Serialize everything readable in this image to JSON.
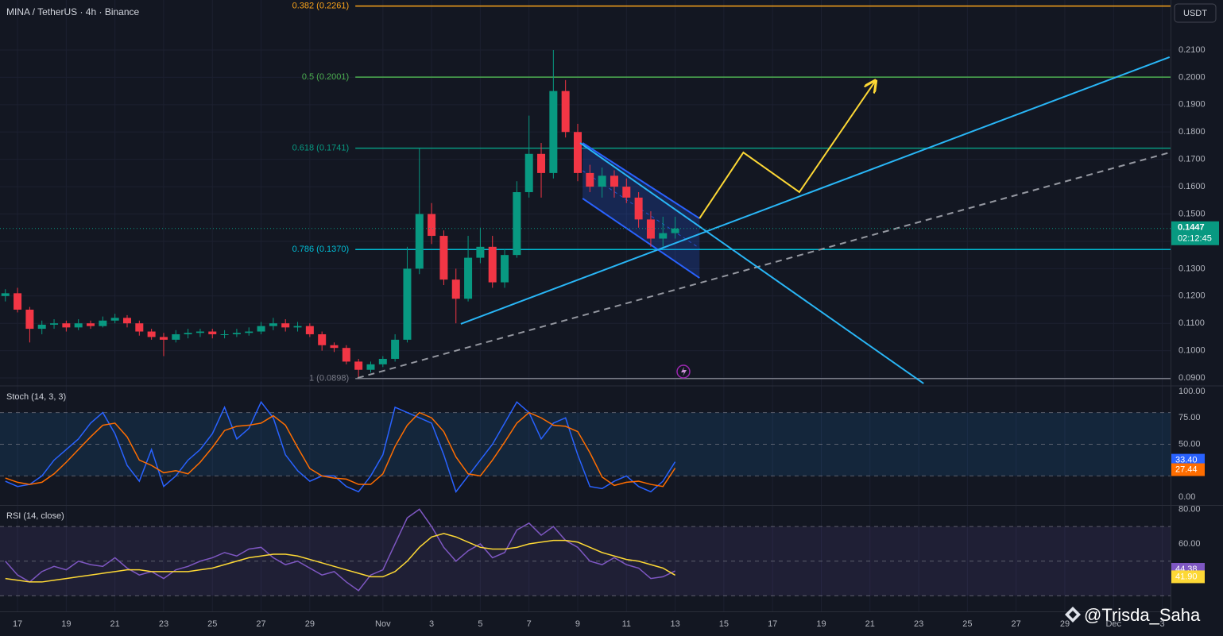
{
  "header": {
    "symbol": "MINA / TetherUS · 4h · Binance",
    "currency": "USDT",
    "countdown": "02:12:45",
    "watermark": "@Trisda_Saha"
  },
  "chart_data": [
    {
      "type": "candlestick",
      "up_color": "#089981",
      "down_color": "#f23645",
      "xlim": [
        -0.72,
        47.34
      ],
      "ylim": [
        0.0874,
        0.2283
      ],
      "xticks": [
        {
          "value": 0,
          "label": "17"
        },
        {
          "value": 2,
          "label": "19"
        },
        {
          "value": 4,
          "label": "21"
        },
        {
          "value": 6,
          "label": "23"
        },
        {
          "value": 8,
          "label": "25"
        },
        {
          "value": 10,
          "label": "27"
        },
        {
          "value": 12,
          "label": "29"
        },
        {
          "value": 15,
          "label": "Nov"
        },
        {
          "value": 17,
          "label": "3"
        },
        {
          "value": 19,
          "label": "5"
        },
        {
          "value": 21,
          "label": "7"
        },
        {
          "value": 23,
          "label": "9"
        },
        {
          "value": 25,
          "label": "11"
        },
        {
          "value": 27,
          "label": "13"
        },
        {
          "value": 29,
          "label": "15"
        },
        {
          "value": 31,
          "label": "17"
        },
        {
          "value": 33,
          "label": "19"
        },
        {
          "value": 35,
          "label": "21"
        },
        {
          "value": 37,
          "label": "23"
        },
        {
          "value": 39,
          "label": "25"
        },
        {
          "value": 41,
          "label": "27"
        },
        {
          "value": 43,
          "label": "29"
        },
        {
          "value": 45,
          "label": "Dec"
        },
        {
          "value": 47,
          "label": "3"
        }
      ],
      "yticks": [
        {
          "value": 0.09,
          "label": "0.0900"
        },
        {
          "value": 0.1,
          "label": "0.1000"
        },
        {
          "value": 0.11,
          "label": "0.1100"
        },
        {
          "value": 0.12,
          "label": "0.1200"
        },
        {
          "value": 0.13,
          "label": "0.1300"
        },
        {
          "value": 0.14,
          "label": "0.1400"
        },
        {
          "value": 0.15,
          "label": "0.1500"
        },
        {
          "value": 0.16,
          "label": "0.1600"
        },
        {
          "value": 0.17,
          "label": "0.1700"
        },
        {
          "value": 0.18,
          "label": "0.1800"
        },
        {
          "value": 0.19,
          "label": "0.1900"
        },
        {
          "value": 0.2,
          "label": "0.2000"
        },
        {
          "value": 0.21,
          "label": "0.2100"
        }
      ],
      "grid": true,
      "x": [
        -0.5,
        0,
        0.5,
        1,
        1.5,
        2,
        2.5,
        3,
        3.5,
        4,
        4.5,
        5,
        5.5,
        6,
        6.5,
        7,
        7.5,
        8,
        8.5,
        9,
        9.5,
        10,
        10.5,
        11,
        11.5,
        12,
        12.5,
        13,
        13.5,
        14,
        14.5,
        15,
        15.5,
        16,
        16.5,
        17,
        17.5,
        18,
        18.5,
        19,
        19.5,
        20,
        20.5,
        21,
        21.5,
        22,
        22.5,
        23,
        23.5,
        24,
        24.5,
        25,
        25.5,
        26,
        26.5,
        27
      ],
      "open": [
        0.12,
        0.121,
        0.115,
        0.108,
        0.1095,
        0.11,
        0.1085,
        0.11,
        0.109,
        0.111,
        0.112,
        0.11,
        0.107,
        0.105,
        0.104,
        0.106,
        0.1065,
        0.107,
        0.106,
        0.106,
        0.1065,
        0.107,
        0.109,
        0.11,
        0.1085,
        0.109,
        0.106,
        0.102,
        0.101,
        0.096,
        0.093,
        0.095,
        0.097,
        0.104,
        0.13,
        0.15,
        0.142,
        0.126,
        0.119,
        0.134,
        0.138,
        0.125,
        0.135,
        0.158,
        0.172,
        0.165,
        0.195,
        0.18,
        0.165,
        0.16,
        0.164,
        0.16,
        0.156,
        0.148,
        0.141,
        0.143
      ],
      "high": [
        0.1225,
        0.123,
        0.116,
        0.111,
        0.1115,
        0.111,
        0.1115,
        0.111,
        0.1125,
        0.1135,
        0.113,
        0.111,
        0.108,
        0.1065,
        0.1075,
        0.108,
        0.108,
        0.108,
        0.1075,
        0.108,
        0.1085,
        0.1105,
        0.112,
        0.1115,
        0.1105,
        0.11,
        0.107,
        0.103,
        0.102,
        0.097,
        0.096,
        0.098,
        0.106,
        0.138,
        0.174,
        0.154,
        0.144,
        0.13,
        0.142,
        0.145,
        0.142,
        0.137,
        0.162,
        0.186,
        0.176,
        0.21,
        0.199,
        0.183,
        0.168,
        0.167,
        0.166,
        0.163,
        0.158,
        0.151,
        0.149,
        0.149
      ],
      "low": [
        0.118,
        0.114,
        0.103,
        0.106,
        0.108,
        0.107,
        0.1075,
        0.108,
        0.1085,
        0.11,
        0.1085,
        0.1055,
        0.104,
        0.098,
        0.103,
        0.1045,
        0.105,
        0.1045,
        0.1045,
        0.105,
        0.1055,
        0.106,
        0.1075,
        0.107,
        0.107,
        0.105,
        0.1,
        0.0995,
        0.095,
        0.0898,
        0.092,
        0.094,
        0.096,
        0.103,
        0.128,
        0.139,
        0.124,
        0.11,
        0.118,
        0.132,
        0.123,
        0.123,
        0.134,
        0.156,
        0.156,
        0.163,
        0.178,
        0.162,
        0.158,
        0.156,
        0.156,
        0.154,
        0.145,
        0.138,
        0.138,
        0.141
      ],
      "close": [
        0.121,
        0.115,
        0.108,
        0.1095,
        0.11,
        0.1085,
        0.11,
        0.109,
        0.111,
        0.112,
        0.11,
        0.107,
        0.105,
        0.104,
        0.106,
        0.1065,
        0.107,
        0.106,
        0.106,
        0.1065,
        0.107,
        0.109,
        0.11,
        0.1085,
        0.109,
        0.106,
        0.102,
        0.101,
        0.096,
        0.093,
        0.095,
        0.097,
        0.104,
        0.13,
        0.15,
        0.142,
        0.126,
        0.119,
        0.134,
        0.138,
        0.125,
        0.135,
        0.158,
        0.172,
        0.165,
        0.195,
        0.18,
        0.165,
        0.16,
        0.164,
        0.16,
        0.156,
        0.148,
        0.141,
        0.143,
        0.1447
      ],
      "fib_levels": [
        {
          "label": "0.382 (0.2261)",
          "value": 0.2261,
          "color": "#f7a21b"
        },
        {
          "label": "0.5 (0.2001)",
          "value": 0.2001,
          "color": "#4caf50"
        },
        {
          "label": "0.618 (0.1741)",
          "value": 0.1741,
          "color": "#089981"
        },
        {
          "label": "0.786 (0.1370)",
          "value": 0.137,
          "color": "#00bcd4"
        },
        {
          "label": "1 (0.0898)",
          "value": 0.0898,
          "color": "#787b86"
        }
      ],
      "drawings": [
        {
          "style": "solid",
          "color": "#29b6f6",
          "points": [
            [
              18.2,
              0.1098
            ],
            [
              47.3,
              0.2074
            ]
          ]
        },
        {
          "style": "dashed",
          "color": "#9598a1",
          "points": [
            [
              13.96,
              0.09
            ],
            [
              47.3,
              0.1725
            ]
          ]
        },
        {
          "style": "solid",
          "color": "#29b6f6",
          "points": [
            [
              23.1,
              0.176
            ],
            [
              37.2,
              0.088
            ]
          ]
        },
        {
          "style": "arrow",
          "color": "#fdd835",
          "points": [
            [
              28.0,
              0.1484
            ],
            [
              29.8,
              0.1725
            ],
            [
              32.1,
              0.158
            ],
            [
              35.2,
              0.1984
            ]
          ]
        }
      ],
      "channel": {
        "color": "#2962ff",
        "upper": [
          [
            23.2,
            0.176
          ],
          [
            28.0,
            0.1484
          ]
        ],
        "lower": [
          [
            23.2,
            0.1557
          ],
          [
            28.0,
            0.1266
          ]
        ]
      }
    },
    {
      "type": "line",
      "title": "Stoch (14, 3, 3)",
      "ylim": [
        -7.5,
        104.5
      ],
      "yticks": [
        {
          "value": 0,
          "label": "0.00"
        },
        {
          "value": 25,
          "label": "25.00"
        },
        {
          "value": 50,
          "label": "50.00"
        },
        {
          "value": 75,
          "label": "75.00"
        },
        {
          "value": 100,
          "label": "100.00"
        }
      ],
      "band": [
        20,
        80
      ],
      "band_color": "#2196f3",
      "guides": [
        80,
        50,
        20
      ],
      "series": [
        {
          "color": "#2962ff",
          "last_value_label": "33.40",
          "values": [
            15,
            10,
            12,
            20,
            35,
            45,
            55,
            70,
            80,
            60,
            30,
            15,
            45,
            10,
            20,
            35,
            45,
            60,
            85,
            55,
            65,
            90,
            75,
            40,
            25,
            15,
            20,
            20,
            10,
            5,
            20,
            40,
            85,
            80,
            75,
            70,
            40,
            5,
            20,
            35,
            50,
            70,
            90,
            80,
            55,
            70,
            75,
            40,
            10,
            8,
            15,
            20,
            10,
            5,
            15,
            33.4
          ]
        },
        {
          "color": "#ff6d00",
          "last_value_label": "27.44",
          "values": [
            18,
            14,
            12,
            14,
            22,
            33,
            45,
            57,
            68,
            70,
            57,
            35,
            30,
            23,
            25,
            22,
            33,
            47,
            63,
            67,
            68,
            70,
            77,
            68,
            47,
            27,
            20,
            18,
            17,
            12,
            12,
            22,
            48,
            68,
            80,
            75,
            62,
            38,
            22,
            20,
            35,
            52,
            70,
            80,
            75,
            68,
            67,
            62,
            42,
            19,
            11,
            14,
            15,
            12,
            10,
            27.44
          ]
        }
      ]
    },
    {
      "type": "line",
      "title": "RSI (14, close)",
      "ylim": [
        21,
        82
      ],
      "yticks": [
        {
          "value": 60,
          "label": "60.00"
        },
        {
          "value": 80,
          "label": "80.00"
        }
      ],
      "band": [
        30,
        70
      ],
      "band_color": "#7e57c2",
      "guides": [
        70,
        50,
        30
      ],
      "series": [
        {
          "color": "#7e57c2",
          "last_value_label": "44.38",
          "values": [
            50,
            42,
            38,
            44,
            47,
            45,
            50,
            48,
            47,
            52,
            46,
            42,
            44,
            40,
            45,
            47,
            50,
            52,
            55,
            53,
            57,
            58,
            52,
            48,
            50,
            46,
            42,
            44,
            38,
            33,
            42,
            45,
            60,
            75,
            80,
            70,
            58,
            50,
            56,
            60,
            52,
            55,
            68,
            72,
            65,
            70,
            62,
            58,
            50,
            48,
            52,
            48,
            46,
            40,
            41,
            44.38
          ]
        },
        {
          "color": "#fdd835",
          "last_value_label": "41.90",
          "values": [
            40,
            39,
            38,
            38,
            39,
            40,
            41,
            42,
            43,
            44,
            45,
            45,
            44,
            44,
            44,
            44,
            45,
            46,
            48,
            50,
            52,
            53,
            54,
            54,
            53,
            51,
            49,
            47,
            45,
            43,
            41,
            41,
            44,
            50,
            58,
            64,
            66,
            64,
            61,
            58,
            57,
            57,
            58,
            60,
            61,
            62,
            62,
            61,
            58,
            55,
            53,
            51,
            50,
            48,
            46,
            41.9
          ]
        }
      ]
    }
  ]
}
